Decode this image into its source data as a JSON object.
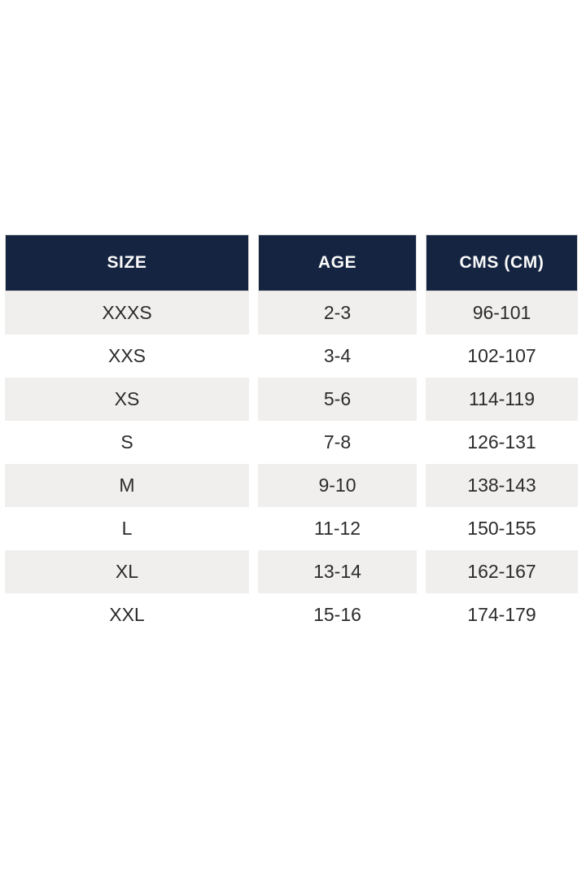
{
  "colors": {
    "header_bg": "#152441",
    "header_text": "#fafafa",
    "row_alt_bg": "#f0efed",
    "body_text": "#2b2b2b",
    "page_bg": "#ffffff"
  },
  "table": {
    "columns": [
      {
        "key": "size",
        "label": "SIZE"
      },
      {
        "key": "age",
        "label": "AGE"
      },
      {
        "key": "cms",
        "label": "CMS (CM)"
      }
    ],
    "rows": [
      {
        "size": "XXXS",
        "age": "2-3",
        "cms": "96-101"
      },
      {
        "size": "XXS",
        "age": "3-4",
        "cms": "102-107"
      },
      {
        "size": "XS",
        "age": "5-6",
        "cms": "114-119"
      },
      {
        "size": "S",
        "age": "7-8",
        "cms": "126-131"
      },
      {
        "size": "M",
        "age": "9-10",
        "cms": "138-143"
      },
      {
        "size": "L",
        "age": "11-12",
        "cms": "150-155"
      },
      {
        "size": "XL",
        "age": "13-14",
        "cms": "162-167"
      },
      {
        "size": "XXL",
        "age": "15-16",
        "cms": "174-179"
      }
    ]
  }
}
